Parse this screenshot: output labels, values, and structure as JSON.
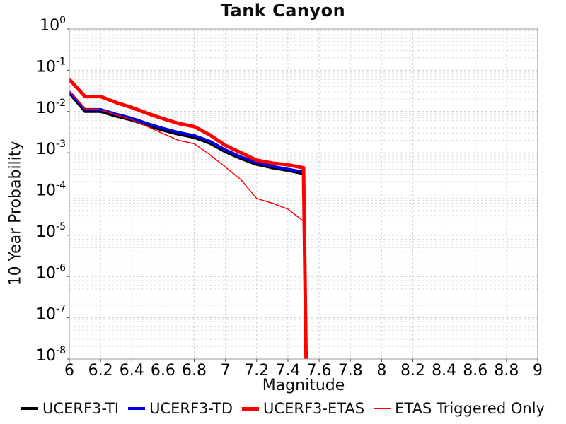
{
  "title": "Tank Canyon",
  "chart_data": {
    "type": "line",
    "title": "Tank Canyon",
    "xlabel": "Magnitude",
    "ylabel": "10 Year Probability",
    "x_scale": "linear",
    "y_scale": "log",
    "xlim": [
      6,
      9
    ],
    "ylim": [
      1e-08,
      1
    ],
    "grid": "dashed",
    "legend_position": "bottom",
    "x_ticks": [
      6,
      6.2,
      6.4,
      6.6,
      6.8,
      7,
      7.2,
      7.4,
      7.6,
      7.8,
      8,
      8.2,
      8.4,
      8.6,
      8.8,
      9
    ],
    "x_tick_labels": [
      "6",
      "6.2",
      "6.4",
      "6.6",
      "6.8",
      "7",
      "7.2",
      "7.4",
      "7.6",
      "7.8",
      "8",
      "8.2",
      "8.4",
      "8.6",
      "8.8",
      "9"
    ],
    "y_tick_exponents": [
      0,
      -1,
      -2,
      -3,
      -4,
      -5,
      -6,
      -7,
      -8
    ],
    "x": [
      6.0,
      6.1,
      6.2,
      6.3,
      6.4,
      6.5,
      6.6,
      6.7,
      6.8,
      6.9,
      7.0,
      7.1,
      7.2,
      7.3,
      7.4,
      7.5,
      7.52
    ],
    "series": [
      {
        "name": "UCERF3-TI",
        "color": "#000000",
        "width": 4,
        "values": [
          0.028,
          0.01,
          0.01,
          0.0077,
          0.0062,
          0.0046,
          0.0035,
          0.0028,
          0.00235,
          0.0017,
          0.00105,
          0.00072,
          0.00052,
          0.00043,
          0.00037,
          0.00031,
          1e-09
        ]
      },
      {
        "name": "UCERF3-TD",
        "color": "#0000e0",
        "width": 4,
        "values": [
          0.03,
          0.0112,
          0.0112,
          0.0086,
          0.0069,
          0.0051,
          0.0039,
          0.0031,
          0.0026,
          0.0019,
          0.00117,
          0.00079,
          0.00058,
          0.00047,
          0.0004,
          0.00034,
          1e-09
        ]
      },
      {
        "name": "UCERF3-ETAS",
        "color": "#ff0000",
        "width": 5,
        "values": [
          0.06,
          0.023,
          0.023,
          0.0165,
          0.0125,
          0.009,
          0.0067,
          0.0051,
          0.0043,
          0.0027,
          0.0015,
          0.001,
          0.00066,
          0.00056,
          0.00051,
          0.00043,
          1e-09
        ]
      },
      {
        "name": "ETAS Triggered Only",
        "color": "#ff0000",
        "width": 1.5,
        "values": [
          0.031,
          0.0118,
          0.011,
          0.0083,
          0.0063,
          0.0043,
          0.0029,
          0.002,
          0.00165,
          0.0009,
          0.00045,
          0.00022,
          7.8e-05,
          6e-05,
          4.3e-05,
          2.2e-05,
          1e-09
        ]
      }
    ]
  }
}
